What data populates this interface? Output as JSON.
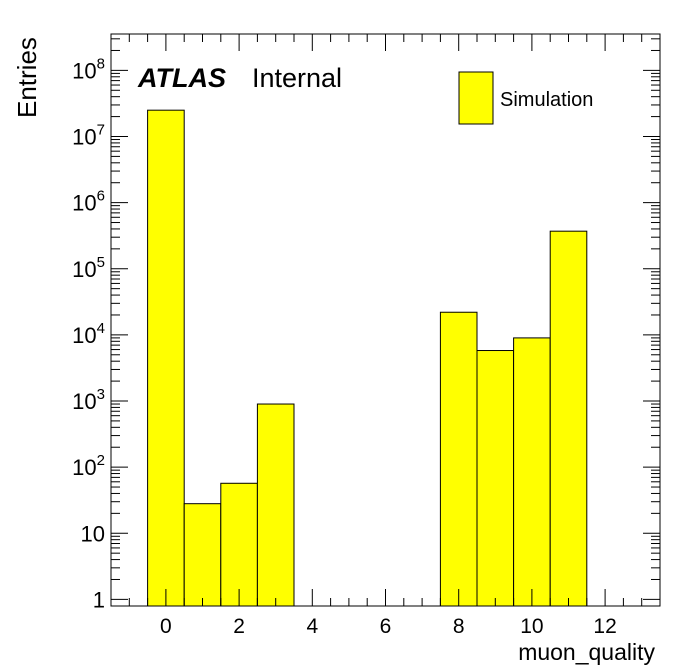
{
  "chart_data": {
    "type": "bar",
    "style": "histogram",
    "xlabel": "muon_quality",
    "ylabel": "Entries",
    "xlim": [
      -1.5,
      13.5
    ],
    "ylim_log10": [
      -0.1,
      8.55
    ],
    "log_y": true,
    "x_ticks": [
      0,
      2,
      4,
      6,
      8,
      10,
      12
    ],
    "x_tick_labels": [
      "0",
      "2",
      "4",
      "6",
      "8",
      "10",
      "12"
    ],
    "y_ticks": [
      {
        "value": 1,
        "base": "1",
        "exp": ""
      },
      {
        "value": 10,
        "base": "10",
        "exp": ""
      },
      {
        "value": 100,
        "base": "10",
        "exp": "2"
      },
      {
        "value": 1000,
        "base": "10",
        "exp": "3"
      },
      {
        "value": 10000,
        "base": "10",
        "exp": "4"
      },
      {
        "value": 100000,
        "base": "10",
        "exp": "5"
      },
      {
        "value": 1000000,
        "base": "10",
        "exp": "6"
      },
      {
        "value": 10000000,
        "base": "10",
        "exp": "7"
      },
      {
        "value": 100000000,
        "base": "10",
        "exp": "8"
      }
    ],
    "series": [
      {
        "name": "Simulation",
        "bin_width": 1,
        "bins": [
          {
            "x": 0,
            "value": 25000000
          },
          {
            "x": 1,
            "value": 28
          },
          {
            "x": 2,
            "value": 57
          },
          {
            "x": 3,
            "value": 900
          },
          {
            "x": 8,
            "value": 22000
          },
          {
            "x": 9,
            "value": 5800
          },
          {
            "x": 10,
            "value": 9000
          },
          {
            "x": 11,
            "value": 370000
          }
        ]
      }
    ],
    "fill_color": "#ffff00",
    "line_color": "#000000",
    "legend_position": "top-right",
    "grid": false
  },
  "label": {
    "experiment": "ATLAS",
    "status": "Internal"
  }
}
